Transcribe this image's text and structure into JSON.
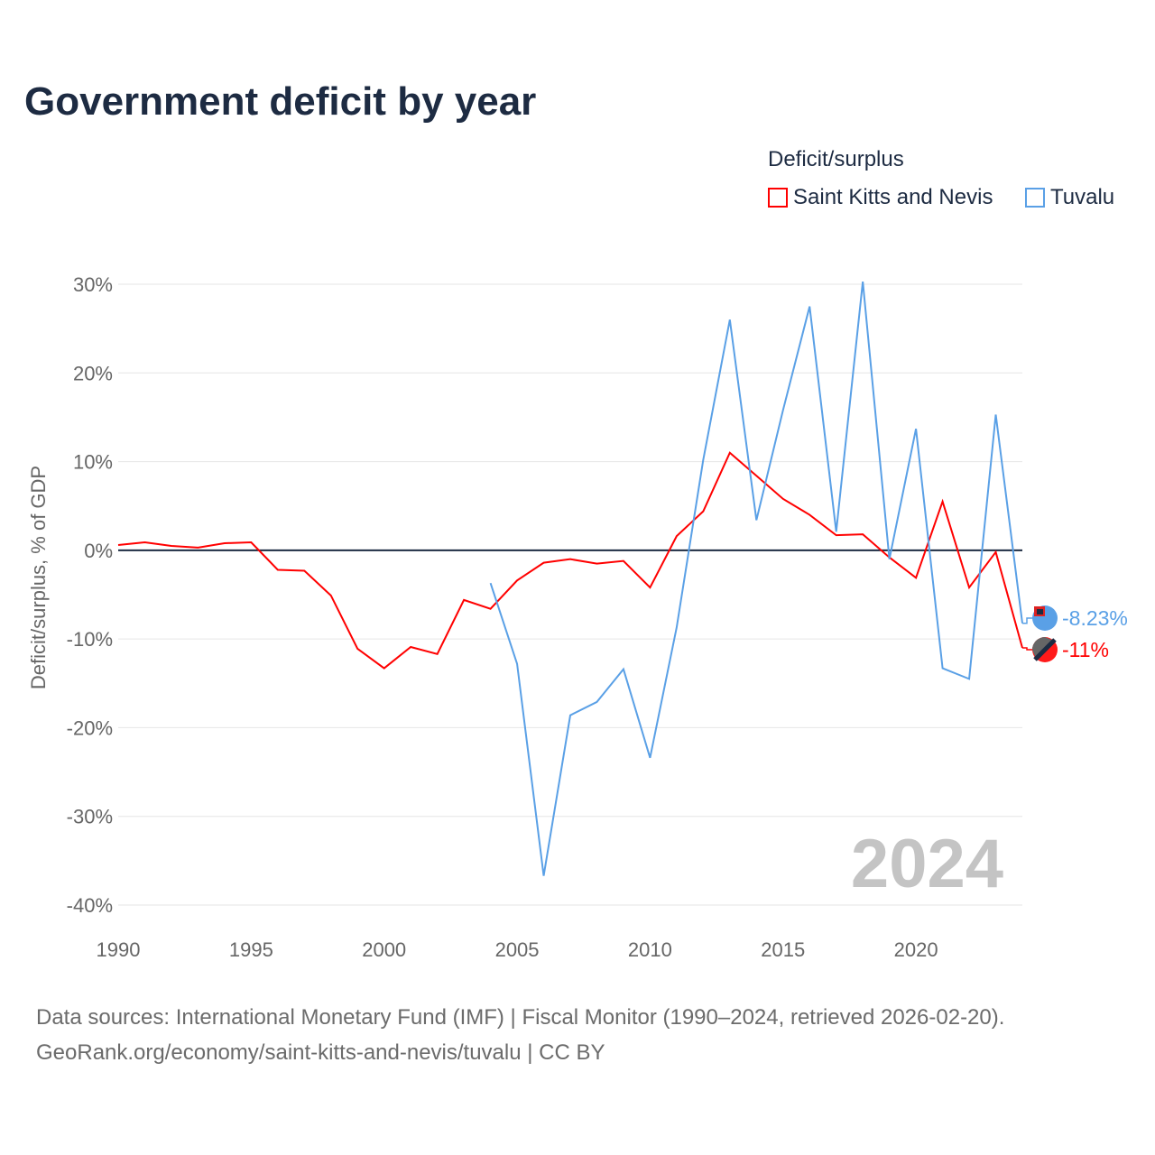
{
  "title": "Government deficit by year",
  "legend": {
    "title": "Deficit/surplus",
    "items": [
      "Saint Kitts and Nevis",
      "Tuvalu"
    ]
  },
  "source": {
    "line1": "Data sources: International Monetary Fund (IMF) | Fiscal Monitor (1990–2024, retrieved 2026-02-20).",
    "line2": "GeoRank.org/economy/saint-kitts-and-nevis/tuvalu | CC BY"
  },
  "chart_data": {
    "type": "line",
    "title": "Government deficit by year",
    "ylabel": "Deficit/surplus, % of GDP",
    "xlabel": "",
    "xlim": [
      1990,
      2024
    ],
    "ylim": [
      -40,
      30
    ],
    "x_ticks": [
      "1990",
      "1995",
      "2000",
      "2005",
      "2010",
      "2015",
      "2020"
    ],
    "y_ticks": [
      "30%",
      "20%",
      "10%",
      "0%",
      "-10%",
      "-20%",
      "-30%",
      "-40%"
    ],
    "grid": true,
    "watermark_year": "2024",
    "series": [
      {
        "name": "Saint Kitts and Nevis",
        "color": "#ff0000",
        "end_label": "-11%",
        "x": [
          1990,
          1991,
          1992,
          1993,
          1994,
          1995,
          1996,
          1997,
          1998,
          1999,
          2000,
          2001,
          2002,
          2003,
          2004,
          2005,
          2006,
          2007,
          2008,
          2009,
          2010,
          2011,
          2012,
          2013,
          2014,
          2015,
          2016,
          2017,
          2018,
          2019,
          2020,
          2021,
          2022,
          2023,
          2024
        ],
        "values": [
          0.6,
          0.9,
          0.5,
          0.3,
          0.8,
          0.9,
          -2.2,
          -2.3,
          -5.1,
          -11.1,
          -13.3,
          -10.9,
          -11.7,
          -5.6,
          -6.6,
          -3.4,
          -1.4,
          -1.0,
          -1.5,
          -1.2,
          -4.2,
          1.6,
          4.4,
          11.0,
          8.4,
          5.8,
          4.0,
          1.7,
          1.8,
          -0.8,
          -3.1,
          5.5,
          -4.2,
          -0.2,
          -11.0
        ]
      },
      {
        "name": "Tuvalu",
        "color": "#5aa0e6",
        "end_label": "-8.23%",
        "x": [
          2004,
          2005,
          2006,
          2007,
          2008,
          2009,
          2010,
          2011,
          2012,
          2013,
          2014,
          2015,
          2016,
          2017,
          2018,
          2019,
          2020,
          2021,
          2022,
          2023,
          2024
        ],
        "values": [
          -3.7,
          -12.8,
          -36.7,
          -18.6,
          -17.1,
          -13.4,
          -23.4,
          -8.7,
          10.2,
          26.0,
          3.4,
          15.8,
          27.5,
          2.1,
          30.3,
          -1.0,
          13.7,
          -13.3,
          -14.5,
          15.3,
          -8.23
        ]
      }
    ]
  }
}
